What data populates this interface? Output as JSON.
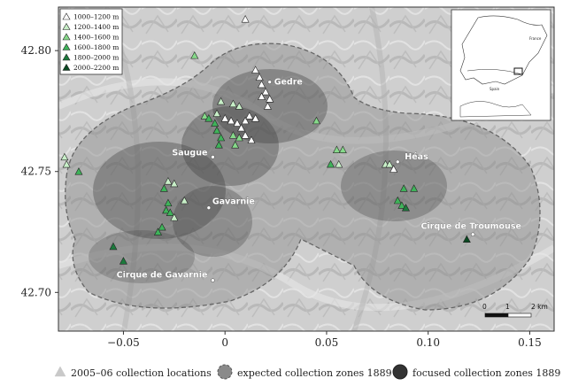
{
  "map": {
    "x_ticks": [
      "−0.05",
      "0",
      "0.05",
      "0.10",
      "0.15"
    ],
    "x_tick_values": [
      -0.05,
      0,
      0.05,
      0.1,
      0.15
    ],
    "y_ticks": [
      "42.80",
      "42.75",
      "42.70"
    ],
    "y_tick_values": [
      42.8,
      42.75,
      42.7
    ],
    "xlim": [
      -0.082,
      0.162
    ],
    "ylim": [
      42.684,
      42.818
    ],
    "places": [
      {
        "name": "Gedre",
        "lon": 0.022,
        "lat": 42.787
      },
      {
        "name": "Saugue",
        "lon": -0.006,
        "lat": 42.756
      },
      {
        "name": "Héas",
        "lon": 0.085,
        "lat": 42.754
      },
      {
        "name": "Gavarnie",
        "lon": -0.008,
        "lat": 42.735
      },
      {
        "name": "Cirque de Troumouse",
        "lon": 0.122,
        "lat": 42.724
      },
      {
        "name": "Cirque de Gavarnie",
        "lon": -0.006,
        "lat": 42.705
      }
    ],
    "elevation_legend": [
      {
        "label": "1000–1200 m",
        "color": "#ffffff"
      },
      {
        "label": "1200–1400 m",
        "color": "#c8efc8"
      },
      {
        "label": "1400–1600 m",
        "color": "#86d98a"
      },
      {
        "label": "1600–1800 m",
        "color": "#3fb35a"
      },
      {
        "label": "1800–2000 m",
        "color": "#1c7a3c"
      },
      {
        "label": "2000–2200 m",
        "color": "#0b4a22"
      }
    ],
    "scale_bar": {
      "labels": [
        "0",
        "1",
        "2 km"
      ]
    },
    "inset": {
      "labels": [
        "France",
        "Spain"
      ]
    },
    "collection_points": [
      {
        "lon": 0.01,
        "lat": 42.813,
        "elev": 0
      },
      {
        "lon": -0.015,
        "lat": 42.798,
        "elev": 2
      },
      {
        "lon": 0.015,
        "lat": 42.792,
        "elev": 0
      },
      {
        "lon": 0.017,
        "lat": 42.789,
        "elev": 0
      },
      {
        "lon": 0.018,
        "lat": 42.786,
        "elev": 0
      },
      {
        "lon": 0.02,
        "lat": 42.783,
        "elev": 0
      },
      {
        "lon": 0.022,
        "lat": 42.78,
        "elev": 0
      },
      {
        "lon": 0.021,
        "lat": 42.777,
        "elev": 0
      },
      {
        "lon": 0.018,
        "lat": 42.781,
        "elev": 0
      },
      {
        "lon": -0.002,
        "lat": 42.779,
        "elev": 1
      },
      {
        "lon": 0.004,
        "lat": 42.778,
        "elev": 1
      },
      {
        "lon": 0.007,
        "lat": 42.777,
        "elev": 1
      },
      {
        "lon": -0.004,
        "lat": 42.774,
        "elev": 1
      },
      {
        "lon": -0.01,
        "lat": 42.773,
        "elev": 2
      },
      {
        "lon": -0.008,
        "lat": 42.772,
        "elev": 3
      },
      {
        "lon": -0.005,
        "lat": 42.77,
        "elev": 3
      },
      {
        "lon": 0.0,
        "lat": 42.772,
        "elev": 0
      },
      {
        "lon": 0.003,
        "lat": 42.771,
        "elev": 0
      },
      {
        "lon": 0.006,
        "lat": 42.77,
        "elev": 0
      },
      {
        "lon": 0.008,
        "lat": 42.768,
        "elev": 0
      },
      {
        "lon": 0.01,
        "lat": 42.771,
        "elev": 0
      },
      {
        "lon": 0.012,
        "lat": 42.773,
        "elev": 0
      },
      {
        "lon": 0.015,
        "lat": 42.772,
        "elev": 0
      },
      {
        "lon": -0.004,
        "lat": 42.767,
        "elev": 3
      },
      {
        "lon": -0.002,
        "lat": 42.764,
        "elev": 3
      },
      {
        "lon": -0.003,
        "lat": 42.761,
        "elev": 3
      },
      {
        "lon": 0.004,
        "lat": 42.765,
        "elev": 2
      },
      {
        "lon": 0.007,
        "lat": 42.764,
        "elev": 2
      },
      {
        "lon": 0.005,
        "lat": 42.761,
        "elev": 2
      },
      {
        "lon": 0.013,
        "lat": 42.763,
        "elev": 0
      },
      {
        "lon": 0.01,
        "lat": 42.765,
        "elev": 0
      },
      {
        "lon": -0.079,
        "lat": 42.756,
        "elev": 1
      },
      {
        "lon": -0.078,
        "lat": 42.753,
        "elev": 1
      },
      {
        "lon": -0.072,
        "lat": 42.75,
        "elev": 3
      },
      {
        "lon": -0.028,
        "lat": 42.746,
        "elev": 1
      },
      {
        "lon": -0.025,
        "lat": 42.745,
        "elev": 1
      },
      {
        "lon": -0.03,
        "lat": 42.743,
        "elev": 3
      },
      {
        "lon": -0.02,
        "lat": 42.738,
        "elev": 1
      },
      {
        "lon": -0.028,
        "lat": 42.737,
        "elev": 3
      },
      {
        "lon": -0.029,
        "lat": 42.734,
        "elev": 3
      },
      {
        "lon": -0.027,
        "lat": 42.733,
        "elev": 3
      },
      {
        "lon": -0.025,
        "lat": 42.731,
        "elev": 1
      },
      {
        "lon": -0.031,
        "lat": 42.727,
        "elev": 3
      },
      {
        "lon": -0.033,
        "lat": 42.725,
        "elev": 3
      },
      {
        "lon": -0.055,
        "lat": 42.719,
        "elev": 4
      },
      {
        "lon": -0.05,
        "lat": 42.713,
        "elev": 4
      },
      {
        "lon": 0.045,
        "lat": 42.771,
        "elev": 2
      },
      {
        "lon": 0.055,
        "lat": 42.759,
        "elev": 2
      },
      {
        "lon": 0.058,
        "lat": 42.759,
        "elev": 2
      },
      {
        "lon": 0.052,
        "lat": 42.753,
        "elev": 3
      },
      {
        "lon": 0.056,
        "lat": 42.753,
        "elev": 1
      },
      {
        "lon": 0.079,
        "lat": 42.753,
        "elev": 1
      },
      {
        "lon": 0.081,
        "lat": 42.753,
        "elev": 1
      },
      {
        "lon": 0.083,
        "lat": 42.751,
        "elev": 0
      },
      {
        "lon": 0.088,
        "lat": 42.743,
        "elev": 3
      },
      {
        "lon": 0.093,
        "lat": 42.743,
        "elev": 3
      },
      {
        "lon": 0.085,
        "lat": 42.738,
        "elev": 3
      },
      {
        "lon": 0.087,
        "lat": 42.736,
        "elev": 3
      },
      {
        "lon": 0.089,
        "lat": 42.735,
        "elev": 4
      },
      {
        "lon": 0.119,
        "lat": 42.722,
        "elev": 5
      }
    ]
  },
  "bottom_legend": {
    "items": [
      {
        "label": "2005–06 collection locations"
      },
      {
        "label": "expected collection zones 1889"
      },
      {
        "label": "focused collection zones 1889"
      }
    ]
  }
}
